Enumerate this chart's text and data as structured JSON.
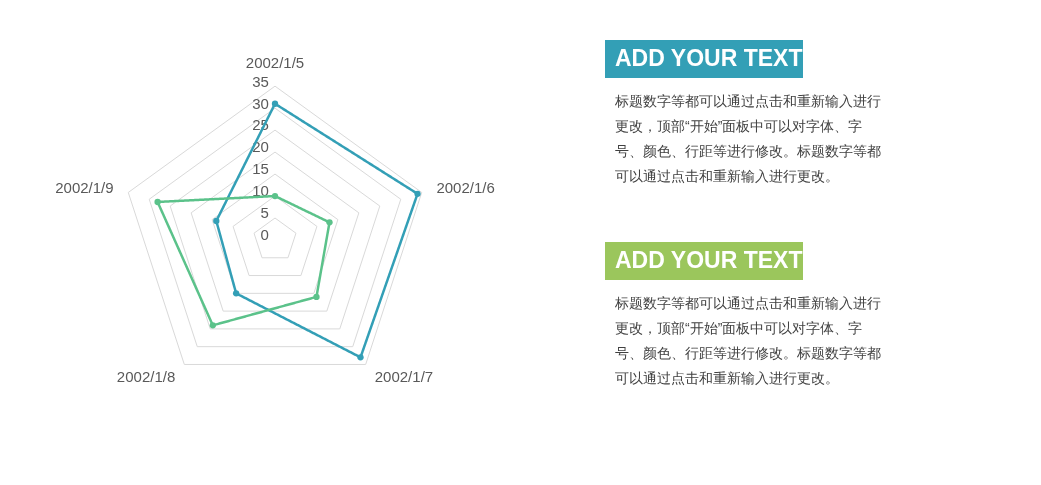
{
  "chart_data": [
    {
      "type": "radar",
      "categories": [
        "2002/1/5",
        "2002/1/6",
        "2002/1/7",
        "2002/1/8",
        "2002/1/9"
      ],
      "ylim": [
        0,
        35
      ],
      "yticks": [
        0,
        5,
        10,
        15,
        20,
        25,
        30,
        35
      ],
      "grid": true,
      "marker": "circle",
      "line_style": "solid",
      "series": [
        {
          "color": "#339fb6",
          "values": [
            31,
            34,
            33,
            15,
            14
          ]
        },
        {
          "color": "#5bc28a",
          "values": [
            10,
            13,
            16,
            24,
            28
          ]
        }
      ]
    },
    {
      "type": "other",
      "annotations": [
        "ADD YOUR TEXT",
        "标题数字等都可以通过点击和重新输入进行更改，顶部“开始”面板中可以对字体、字号、颜色、行距等进行修改。标题数字等都可以通过点击和重新输入进行更改。",
        "ADD YOUR TEXT",
        "标题数字等都可以通过点击和重新输入进行更改，顶部“开始”面板中可以对字体、字号、颜色、行距等进行修改。标题数字等都可以通过点击和重新输入进行更改。"
      ]
    }
  ]
}
